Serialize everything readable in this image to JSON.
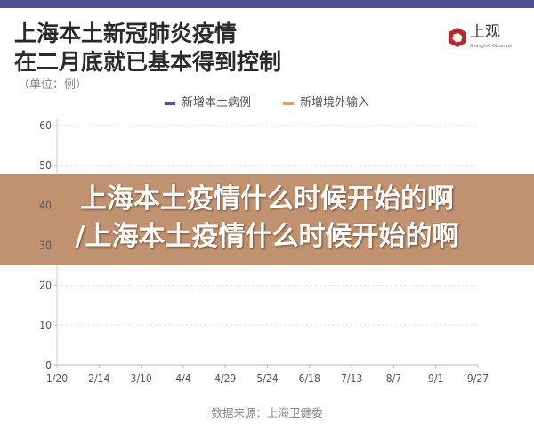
{
  "header": {
    "title_line1": "上海本土新冠肺炎疫情",
    "title_line2": "在二月底就已基本得到控制",
    "unit": "（单位：例）"
  },
  "logo": {
    "name": "上观",
    "english": "Shanghai Observer",
    "color": "#b8282e"
  },
  "source": "数据来源：上海卫健委",
  "overlay": {
    "line1": "上海本土疫情什么时候开始的啊",
    "line2": "/上海本土疫情什么时候开始的啊"
  },
  "chart_data": {
    "type": "line",
    "title": "上海本土新冠肺炎疫情在二月底就已基本得到控制",
    "ylabel": "（单位：例）",
    "ylim": [
      0,
      60
    ],
    "yticks": [
      0,
      10,
      20,
      30,
      40,
      50,
      60
    ],
    "xticks": [
      "1/20",
      "2/14",
      "3/10",
      "4/4",
      "4/29",
      "5/24",
      "6/18",
      "7/13",
      "8/7",
      "9/1",
      "9/27"
    ],
    "grid": true,
    "legend_placement": "top",
    "series": [
      {
        "name": "新增本土病例",
        "color": "#4a4fb0",
        "values": []
      },
      {
        "name": "新增境外输入",
        "color": "#f0a030",
        "values": []
      }
    ]
  }
}
